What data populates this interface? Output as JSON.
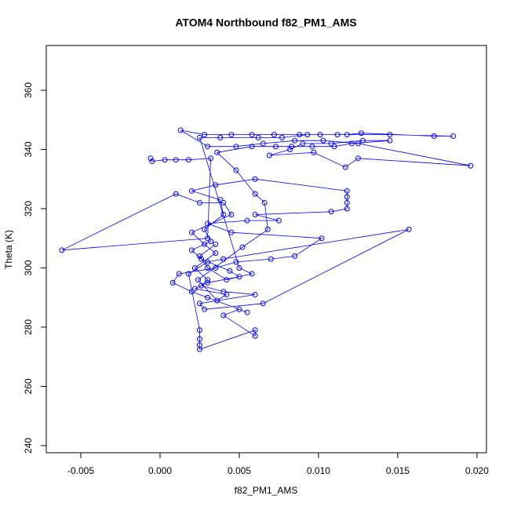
{
  "chart_data": {
    "type": "scatter",
    "connect": true,
    "title": "ATOM4 Northbound f82_PM1_AMS",
    "x_label": "f82_PM1_AMS",
    "y_label": "Theta (K)",
    "color": "#0000ff",
    "xlim": [
      -0.00718,
      0.0206
    ],
    "ylim": [
      237.6,
      375.1
    ],
    "xticks": [
      -0.005,
      {
        "value": 0,
        "label": "0.000"
      },
      0.005,
      {
        "value": 0.01,
        "label": "0.010"
      },
      0.015,
      {
        "value": 0.02,
        "label": "0.020"
      }
    ],
    "yticks": [
      240,
      260,
      280,
      300,
      320,
      340,
      360
    ],
    "x": [
      -0.0006,
      -0.0005,
      0.0003,
      0.001,
      0.0018,
      0.0032,
      0.003,
      -0.0062,
      0.001,
      0.0025,
      0.004,
      0.0045,
      0.002,
      0.0028,
      0.0035,
      0.0022,
      0.003,
      0.0026,
      0.004,
      0.006,
      0.0025,
      0.0028,
      0.0065,
      0.0157,
      0.004,
      0.003,
      0.0018,
      0.0025,
      0.0025,
      0.0025,
      0.0025,
      0.006,
      0.006,
      0.004,
      0.005,
      0.0055,
      0.003,
      0.002,
      0.0008,
      0.0012,
      0.0035,
      0.0048,
      0.007,
      0.0085,
      0.0102,
      0.0045,
      0.003,
      0.0055,
      0.0075,
      0.006,
      0.0108,
      0.0118,
      0.0118,
      0.0118,
      0.0118,
      0.006,
      0.0035,
      0.002,
      0.0038,
      0.004,
      0.0028,
      0.0032,
      0.002,
      0.0026,
      0.0044,
      0.005,
      0.003,
      0.0022,
      0.0042,
      0.0036,
      0.0024,
      0.0052,
      0.0068,
      0.0066,
      0.006,
      0.0048,
      0.0036,
      0.0058,
      0.0073,
      0.0083,
      0.0096,
      0.011,
      0.0121,
      0.0145,
      0.0128,
      0.0108,
      0.009,
      0.0082,
      0.0069,
      0.0097,
      0.0117,
      0.0125,
      0.0196,
      0.0125,
      0.0103,
      0.0085,
      0.0065,
      0.0048,
      0.003,
      0.0013,
      0.0028,
      0.0045,
      0.0058,
      0.0072,
      0.0088,
      0.0101,
      0.0118,
      0.0127,
      0.0173,
      0.0185,
      0.0145,
      0.0112,
      0.0093,
      0.0077,
      0.0062,
      0.0038,
      0.0025,
      0.005,
      0.0058,
      0.0042,
      0.003,
      0.0025,
      0.0035
    ],
    "y": [
      337,
      336,
      336.5,
      336.5,
      336.5,
      337,
      310,
      306,
      325,
      322,
      322,
      318,
      312,
      308,
      305,
      300,
      296,
      294,
      292,
      291,
      288,
      286,
      288,
      313,
      303,
      302,
      298,
      279,
      276,
      274,
      272.5,
      279,
      277,
      284,
      286,
      285,
      290,
      292,
      295,
      298,
      300,
      302,
      303,
      304,
      310,
      312,
      315,
      316,
      316,
      318,
      319,
      320,
      322,
      324,
      326,
      330,
      328,
      326,
      323,
      318,
      313,
      309,
      306,
      303,
      299,
      297,
      295,
      293,
      291,
      289,
      296,
      307,
      313,
      322,
      325,
      333,
      339,
      341,
      341,
      341,
      341,
      341,
      342,
      343,
      343,
      342,
      342,
      340,
      338,
      339,
      334,
      337,
      334.5,
      342,
      343,
      343,
      342,
      341,
      341,
      346.5,
      345,
      345,
      345,
      345,
      345,
      345,
      345,
      345.5,
      344.5,
      344.5,
      345,
      345,
      345,
      344,
      344,
      344,
      344,
      300,
      298,
      296,
      300,
      304,
      308
    ]
  }
}
